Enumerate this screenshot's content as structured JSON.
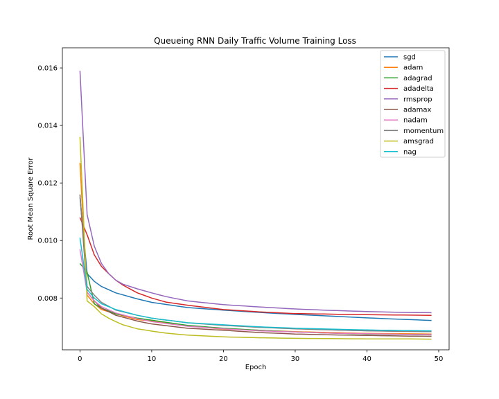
{
  "chart_data": {
    "type": "line",
    "title": "Queueing RNN Daily Traffic Volume Training Loss",
    "xlabel": "Epoch",
    "ylabel": "Root Mean Square Error",
    "xlim": [
      -2.45,
      51.45
    ],
    "ylim": [
      0.0062,
      0.0167
    ],
    "xticks": [
      0,
      10,
      20,
      30,
      40,
      50
    ],
    "yticks": [
      0.008,
      0.01,
      0.012,
      0.014,
      0.016
    ],
    "ytick_labels": [
      "0.008",
      "0.010",
      "0.012",
      "0.014",
      "0.016"
    ],
    "grid": false,
    "legend_position": "upper right",
    "series": [
      {
        "name": "sgd",
        "color": "#1f77b4",
        "anchors": [
          [
            0,
            0.0115
          ],
          [
            1,
            0.00885
          ],
          [
            2,
            0.00858
          ],
          [
            3,
            0.0084
          ],
          [
            5,
            0.00818
          ],
          [
            8,
            0.00797
          ],
          [
            10,
            0.00785
          ],
          [
            15,
            0.00767
          ],
          [
            20,
            0.00758
          ],
          [
            25,
            0.0075
          ],
          [
            30,
            0.00743
          ],
          [
            35,
            0.00737
          ],
          [
            40,
            0.00731
          ],
          [
            45,
            0.00726
          ],
          [
            49,
            0.00722
          ]
        ]
      },
      {
        "name": "adam",
        "color": "#ff7f0e",
        "anchors": [
          [
            0,
            0.0127
          ],
          [
            1,
            0.0081
          ],
          [
            2,
            0.0078
          ],
          [
            3,
            0.0076
          ],
          [
            5,
            0.00745
          ],
          [
            8,
            0.00725
          ],
          [
            10,
            0.0072
          ],
          [
            15,
            0.00703
          ],
          [
            20,
            0.00692
          ],
          [
            25,
            0.00688
          ],
          [
            30,
            0.00683
          ],
          [
            35,
            0.0068
          ],
          [
            40,
            0.00677
          ],
          [
            45,
            0.00676
          ],
          [
            49,
            0.00675
          ]
        ]
      },
      {
        "name": "adagrad",
        "color": "#2ca02c",
        "anchors": [
          [
            0,
            0.0092
          ],
          [
            1,
            0.0089
          ],
          [
            2,
            0.0078
          ],
          [
            3,
            0.00765
          ],
          [
            5,
            0.00745
          ],
          [
            8,
            0.0073
          ],
          [
            10,
            0.00723
          ],
          [
            15,
            0.00705
          ],
          [
            20,
            0.00695
          ],
          [
            25,
            0.00688
          ],
          [
            30,
            0.00682
          ],
          [
            35,
            0.00678
          ],
          [
            40,
            0.00675
          ],
          [
            45,
            0.00673
          ],
          [
            49,
            0.00672
          ]
        ]
      },
      {
        "name": "adadelta",
        "color": "#d62728",
        "anchors": [
          [
            0,
            0.0108
          ],
          [
            1,
            0.0102
          ],
          [
            2,
            0.0095
          ],
          [
            3,
            0.0091
          ],
          [
            4,
            0.00885
          ],
          [
            5,
            0.00862
          ],
          [
            6,
            0.00845
          ],
          [
            8,
            0.00818
          ],
          [
            10,
            0.008
          ],
          [
            12,
            0.00786
          ],
          [
            15,
            0.00775
          ],
          [
            20,
            0.0076
          ],
          [
            25,
            0.00752
          ],
          [
            30,
            0.00746
          ],
          [
            35,
            0.00744
          ],
          [
            40,
            0.00742
          ],
          [
            45,
            0.00741
          ],
          [
            49,
            0.0074
          ]
        ]
      },
      {
        "name": "rmsprop",
        "color": "#9467bd",
        "anchors": [
          [
            0,
            0.0159
          ],
          [
            1,
            0.0109
          ],
          [
            2,
            0.0098
          ],
          [
            3,
            0.0092
          ],
          [
            4,
            0.00885
          ],
          [
            5,
            0.00862
          ],
          [
            6,
            0.00848
          ],
          [
            8,
            0.00832
          ],
          [
            10,
            0.00818
          ],
          [
            12,
            0.00805
          ],
          [
            15,
            0.0079
          ],
          [
            20,
            0.00777
          ],
          [
            25,
            0.00769
          ],
          [
            30,
            0.00762
          ],
          [
            35,
            0.00757
          ],
          [
            40,
            0.00753
          ],
          [
            45,
            0.0075
          ],
          [
            49,
            0.00749
          ]
        ]
      },
      {
        "name": "adamax",
        "color": "#8c564b",
        "anchors": [
          [
            0,
            0.0116
          ],
          [
            1,
            0.0082
          ],
          [
            2,
            0.0079
          ],
          [
            3,
            0.00765
          ],
          [
            5,
            0.0074
          ],
          [
            8,
            0.0072
          ],
          [
            10,
            0.0071
          ],
          [
            15,
            0.00695
          ],
          [
            20,
            0.00688
          ],
          [
            25,
            0.0068
          ],
          [
            30,
            0.00675
          ],
          [
            35,
            0.00672
          ],
          [
            40,
            0.0067
          ],
          [
            45,
            0.00668
          ],
          [
            49,
            0.00667
          ]
        ]
      },
      {
        "name": "nadam",
        "color": "#e377c2",
        "anchors": [
          [
            0,
            0.0097
          ],
          [
            1,
            0.0082
          ],
          [
            2,
            0.0079
          ],
          [
            3,
            0.0077
          ],
          [
            5,
            0.00748
          ],
          [
            8,
            0.00728
          ],
          [
            10,
            0.00718
          ],
          [
            15,
            0.00702
          ],
          [
            20,
            0.00693
          ],
          [
            25,
            0.00686
          ],
          [
            30,
            0.00682
          ],
          [
            35,
            0.00678
          ],
          [
            40,
            0.00676
          ],
          [
            45,
            0.00674
          ],
          [
            49,
            0.00673
          ]
        ]
      },
      {
        "name": "momentum",
        "color": "#7f7f7f",
        "anchors": [
          [
            0,
            0.0116
          ],
          [
            1,
            0.0084
          ],
          [
            2,
            0.0081
          ],
          [
            3,
            0.00785
          ],
          [
            5,
            0.00758
          ],
          [
            8,
            0.0074
          ],
          [
            10,
            0.0073
          ],
          [
            15,
            0.00714
          ],
          [
            20,
            0.00705
          ],
          [
            25,
            0.00698
          ],
          [
            30,
            0.00693
          ],
          [
            35,
            0.00689
          ],
          [
            40,
            0.00686
          ],
          [
            45,
            0.00684
          ],
          [
            49,
            0.00683
          ]
        ]
      },
      {
        "name": "amsgrad",
        "color": "#bcbd22",
        "anchors": [
          [
            0,
            0.0136
          ],
          [
            1,
            0.0079
          ],
          [
            2,
            0.0077
          ],
          [
            3,
            0.00745
          ],
          [
            4,
            0.0073
          ],
          [
            5,
            0.00718
          ],
          [
            6,
            0.00707
          ],
          [
            8,
            0.00693
          ],
          [
            10,
            0.00685
          ],
          [
            12,
            0.00678
          ],
          [
            15,
            0.00671
          ],
          [
            20,
            0.00665
          ],
          [
            25,
            0.00662
          ],
          [
            30,
            0.0066
          ],
          [
            35,
            0.00659
          ],
          [
            40,
            0.00658
          ],
          [
            45,
            0.00658
          ],
          [
            49,
            0.00657
          ]
        ]
      },
      {
        "name": "nag",
        "color": "#17becf",
        "anchors": [
          [
            0,
            0.0101
          ],
          [
            1,
            0.0083
          ],
          [
            2,
            0.008
          ],
          [
            3,
            0.0078
          ],
          [
            5,
            0.0076
          ],
          [
            8,
            0.0074
          ],
          [
            10,
            0.0073
          ],
          [
            15,
            0.00714
          ],
          [
            20,
            0.00707
          ],
          [
            25,
            0.007
          ],
          [
            30,
            0.00695
          ],
          [
            35,
            0.00692
          ],
          [
            40,
            0.00689
          ],
          [
            45,
            0.00687
          ],
          [
            49,
            0.00686
          ]
        ]
      }
    ]
  }
}
